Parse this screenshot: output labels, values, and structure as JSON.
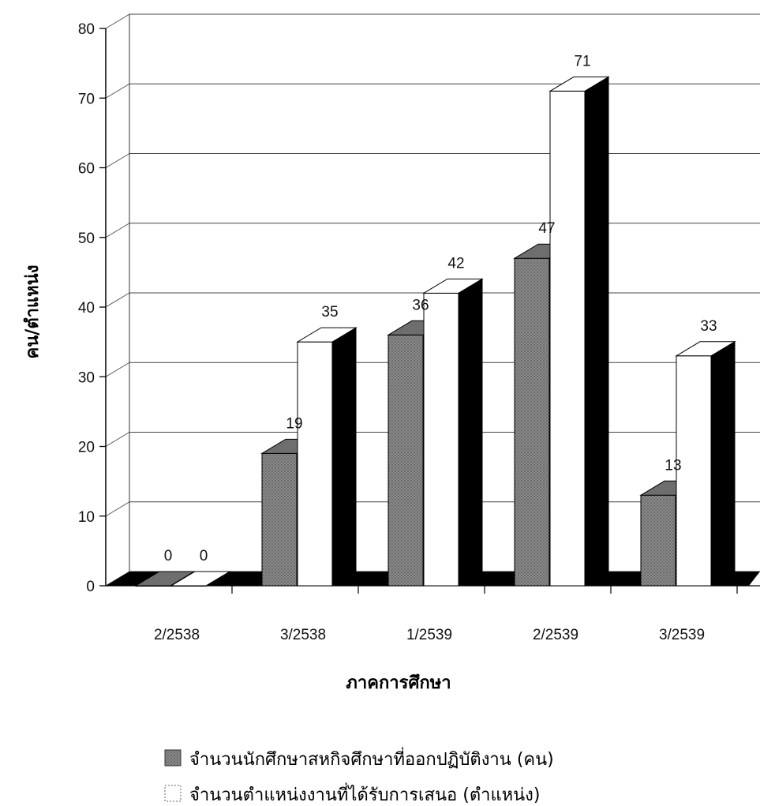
{
  "chart_data": {
    "type": "bar",
    "title": "",
    "xlabel": "ภาคการศึกษา",
    "ylabel": "คน/ตำแหน่ง",
    "categories": [
      "2/2538",
      "3/2538",
      "1/2539",
      "2/2539",
      "3/2539"
    ],
    "series": [
      {
        "name": "จำนวนนักศึกษาสหกิจศึกษาที่ออกปฏิบัติงาน (คน)",
        "values": [
          0,
          19,
          36,
          47,
          13
        ],
        "color": "#7a7a7a"
      },
      {
        "name": "จำนวนตำแหน่งงานที่ได้รับการเสนอ (ตำแหน่ง)",
        "values": [
          0,
          35,
          42,
          71,
          33
        ],
        "color": "#ffffff"
      }
    ],
    "yticks": [
      0,
      10,
      20,
      30,
      40,
      50,
      60,
      70,
      80
    ],
    "ylim": [
      0,
      80
    ],
    "grid": true,
    "style": "3d-bar",
    "legend_position": "bottom"
  }
}
